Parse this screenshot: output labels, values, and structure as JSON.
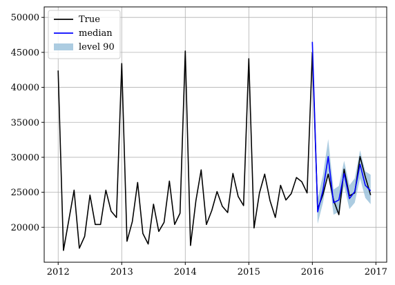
{
  "chart_data": {
    "type": "line",
    "title": "",
    "xlabel": "",
    "ylabel": "",
    "grid": true,
    "legend_position": "upper-left",
    "xlim": [
      2011.78,
      2017.17
    ],
    "ylim": [
      15000,
      51500
    ],
    "x_ticks": [
      2012,
      2013,
      2014,
      2015,
      2016,
      2017
    ],
    "x_tick_labels": [
      "2012",
      "2013",
      "2014",
      "2015",
      "2016",
      "2017"
    ],
    "y_ticks": [
      20000,
      25000,
      30000,
      35000,
      40000,
      45000,
      50000
    ],
    "y_tick_labels": [
      "20000",
      "25000",
      "30000",
      "35000",
      "40000",
      "45000",
      "50000"
    ],
    "legend": [
      {
        "label": "True",
        "kind": "line",
        "color": "#000000"
      },
      {
        "label": "median",
        "kind": "line",
        "color": "#0000ff"
      },
      {
        "label": "level 90",
        "kind": "band",
        "color": "#9ec3dc"
      }
    ],
    "series": [
      {
        "name": "True",
        "kind": "line",
        "color": "#000000",
        "x": [
          2012.0,
          2012.083,
          2012.167,
          2012.25,
          2012.333,
          2012.417,
          2012.5,
          2012.583,
          2012.667,
          2012.75,
          2012.833,
          2012.917,
          2013.0,
          2013.083,
          2013.167,
          2013.25,
          2013.333,
          2013.417,
          2013.5,
          2013.583,
          2013.667,
          2013.75,
          2013.833,
          2013.917,
          2014.0,
          2014.083,
          2014.167,
          2014.25,
          2014.333,
          2014.417,
          2014.5,
          2014.583,
          2014.667,
          2014.75,
          2014.833,
          2014.917,
          2015.0,
          2015.083,
          2015.167,
          2015.25,
          2015.333,
          2015.417,
          2015.5,
          2015.583,
          2015.667,
          2015.75,
          2015.833,
          2015.917,
          2016.0,
          2016.083,
          2016.167,
          2016.25,
          2016.333,
          2016.417,
          2016.5,
          2016.583,
          2016.667,
          2016.75,
          2016.833,
          2016.917
        ],
        "values": [
          42400,
          16700,
          21000,
          25300,
          17000,
          18700,
          24600,
          20400,
          20400,
          25300,
          22300,
          21400,
          43400,
          18000,
          20800,
          26400,
          19100,
          17600,
          23300,
          19400,
          20700,
          26600,
          20400,
          22000,
          45200,
          17400,
          23800,
          28200,
          20400,
          22400,
          25100,
          23000,
          22100,
          27700,
          24400,
          23100,
          44100,
          19900,
          24900,
          27600,
          23800,
          21400,
          26000,
          23900,
          24800,
          27100,
          26500,
          24900,
          45000,
          22600,
          24700,
          27600,
          23900,
          21800,
          28300,
          24500,
          24900,
          30100,
          27200,
          24600
        ]
      },
      {
        "name": "median",
        "kind": "line",
        "color": "#0000ff",
        "x": [
          2016.0,
          2016.083,
          2016.167,
          2016.25,
          2016.333,
          2016.417,
          2016.5,
          2016.583,
          2016.667,
          2016.75,
          2016.833,
          2016.917
        ],
        "values": [
          46500,
          22200,
          25300,
          30100,
          23500,
          23900,
          27700,
          24100,
          25100,
          29000,
          26000,
          25200
        ]
      },
      {
        "name": "level 90",
        "kind": "band",
        "color": "#9ec3dc",
        "x": [
          2016.0,
          2016.083,
          2016.167,
          2016.25,
          2016.333,
          2016.417,
          2016.5,
          2016.583,
          2016.667,
          2016.75,
          2016.833,
          2016.917
        ],
        "lower": [
          44500,
          20500,
          23500,
          28000,
          21800,
          22200,
          25900,
          22600,
          23500,
          27000,
          24200,
          23300
        ],
        "upper": [
          45700,
          24100,
          27500,
          32600,
          25400,
          25900,
          29500,
          26000,
          27000,
          31000,
          28000,
          27500
        ]
      }
    ]
  }
}
